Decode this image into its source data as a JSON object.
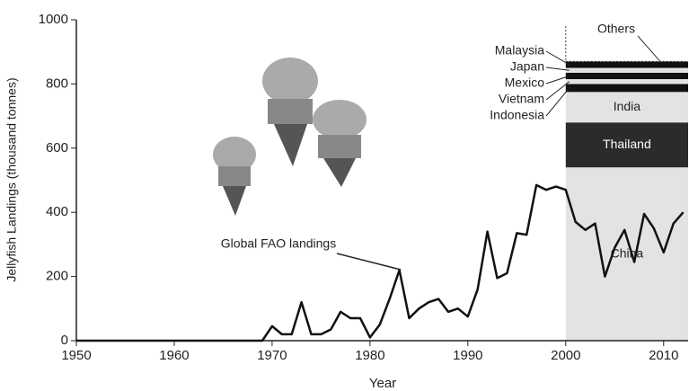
{
  "chart_data": {
    "type": "line",
    "x_label": "Year",
    "y_label": "Jellyfish Landings (thousand tonnes)",
    "annotation": "Global FAO landings",
    "x": [
      1950,
      1951,
      1952,
      1953,
      1954,
      1955,
      1956,
      1957,
      1958,
      1959,
      1960,
      1961,
      1962,
      1963,
      1964,
      1965,
      1966,
      1967,
      1968,
      1969,
      1970,
      1971,
      1972,
      1973,
      1974,
      1975,
      1976,
      1977,
      1978,
      1979,
      1980,
      1981,
      1982,
      1983,
      1984,
      1985,
      1986,
      1987,
      1988,
      1989,
      1990,
      1991,
      1992,
      1993,
      1994,
      1995,
      1996,
      1997,
      1998,
      1999,
      2000,
      2001,
      2002,
      2003,
      2004,
      2005,
      2006,
      2007,
      2008,
      2009,
      2010,
      2011,
      2012
    ],
    "series": [
      {
        "name": "Global FAO landings",
        "color": "#111111",
        "values": [
          0,
          0,
          0,
          0,
          0,
          0,
          0,
          0,
          0,
          0,
          0,
          0,
          0,
          0,
          0,
          0,
          0,
          0,
          0,
          0,
          45,
          20,
          20,
          120,
          20,
          20,
          35,
          90,
          70,
          70,
          10,
          50,
          130,
          220,
          70,
          100,
          120,
          130,
          90,
          100,
          75,
          160,
          340,
          195,
          210,
          335,
          330,
          485,
          470,
          480,
          470,
          370,
          345,
          365,
          200,
          290,
          345,
          245,
          395,
          350,
          275,
          365,
          400
        ]
      }
    ],
    "composition": {
      "x_start": 2000,
      "segments": [
        {
          "name": "China",
          "value": 540,
          "color": "#e3e3e3"
        },
        {
          "name": "Thailand",
          "value": 140,
          "color": "#2b2b2b"
        },
        {
          "name": "India",
          "value": 95,
          "color": "#e3e3e3"
        },
        {
          "name": "Indonesia",
          "value": 25,
          "color": "#111111"
        },
        {
          "name": "Vietnam",
          "value": 15,
          "color": "#e3e3e3"
        },
        {
          "name": "Mexico",
          "value": 20,
          "color": "#111111"
        },
        {
          "name": "Japan",
          "value": 15,
          "color": "#e3e3e3"
        },
        {
          "name": "Malaysia",
          "value": 20,
          "color": "#111111"
        },
        {
          "name": "Others",
          "value": 110,
          "color": "#ffffff"
        }
      ]
    },
    "xlim": [
      1950,
      2012.5
    ],
    "ylim": [
      0,
      1000
    ],
    "xticks": [
      1950,
      1960,
      1970,
      1980,
      1990,
      2000,
      2010
    ],
    "yticks": [
      0,
      200,
      400,
      600,
      800,
      1000
    ]
  }
}
